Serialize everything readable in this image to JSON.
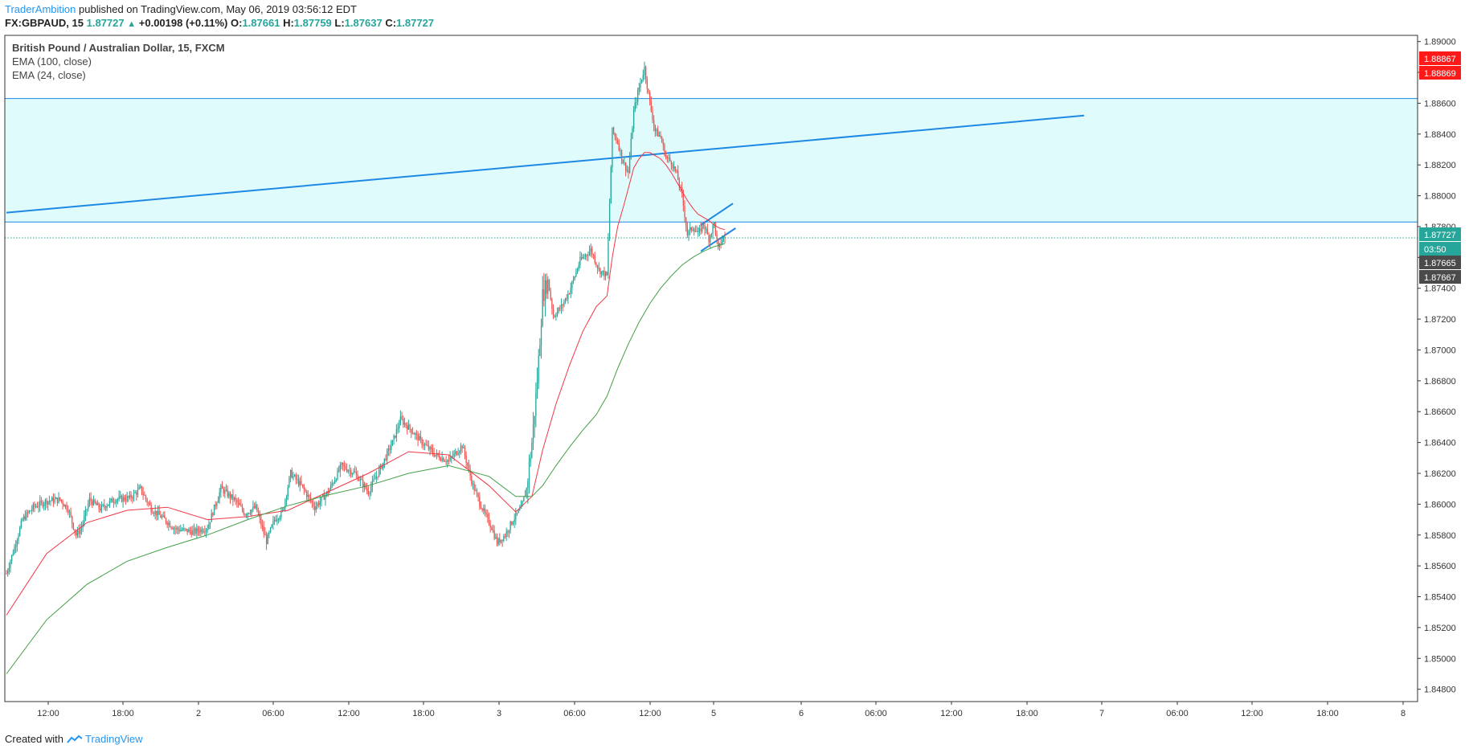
{
  "header": {
    "author": "TraderAmbition",
    "published_text": "published on TradingView.com, May 06, 2019 03:56:12 EDT",
    "symbol": "FX:GBPAUD, 15",
    "last": "1.87727",
    "change": "+0.00198 (+0.11%)",
    "o_label": "O:",
    "o_value": "1.87661",
    "h_label": "H:",
    "h_value": "1.87759",
    "l_label": "L:",
    "l_value": "1.87637",
    "c_label": "C:",
    "c_value": "1.87727"
  },
  "legend": {
    "title": "British Pound / Australian Dollar, 15, FXCM",
    "ema100": "EMA (100, close)",
    "ema24": "EMA (24, close)"
  },
  "price_tags": {
    "red_top": "1.88867",
    "red_bottom": "1.88869",
    "last": "1.87727",
    "countdown": "03:50",
    "dark_top": "1.87665",
    "dark_bottom": "1.87667"
  },
  "footer": {
    "created_with": "Created with",
    "brand": "TradingView"
  },
  "colors": {
    "up": "#26a69a",
    "down": "#ef5350",
    "ema24": "#f23645",
    "ema100": "#43a047",
    "zone": "#e0fbfb",
    "trendline": "#1e88e5",
    "accent": "#2196f3"
  },
  "chart_data": {
    "type": "candlestick",
    "title": "British Pound / Australian Dollar, 15, FXCM",
    "ylim": [
      1.8472,
      1.8904
    ],
    "y_ticks": [
      1.848,
      1.85,
      1.852,
      1.854,
      1.856,
      1.858,
      1.86,
      1.862,
      1.864,
      1.866,
      1.868,
      1.87,
      1.872,
      1.874,
      1.876,
      1.878,
      1.88,
      1.882,
      1.884,
      1.886,
      1.888,
      1.89
    ],
    "x_ticks": [
      "12:00",
      "18:00",
      "2",
      "06:00",
      "12:00",
      "18:00",
      "3",
      "06:00",
      "12:00",
      "5",
      "6",
      "06:00",
      "12:00",
      "18:00",
      "7",
      "06:00",
      "12:00",
      "18:00",
      "8"
    ],
    "zone": {
      "top": 1.8863,
      "bottom": 1.8783
    },
    "last_price": 1.87727,
    "series_path": [
      [
        0,
        1.8555
      ],
      [
        6,
        1.8572
      ],
      [
        12,
        1.859
      ],
      [
        20,
        1.8598
      ],
      [
        30,
        1.8602
      ],
      [
        40,
        1.8603
      ],
      [
        46,
        1.8597
      ],
      [
        52,
        1.858
      ],
      [
        56,
        1.8585
      ],
      [
        62,
        1.8603
      ],
      [
        70,
        1.8597
      ],
      [
        80,
        1.8603
      ],
      [
        92,
        1.8604
      ],
      [
        100,
        1.861
      ],
      [
        108,
        1.8597
      ],
      [
        118,
        1.859
      ],
      [
        126,
        1.8584
      ],
      [
        140,
        1.8582
      ],
      [
        150,
        1.8585
      ],
      [
        160,
        1.861
      ],
      [
        170,
        1.8603
      ],
      [
        178,
        1.8594
      ],
      [
        186,
        1.8598
      ],
      [
        194,
        1.8576
      ],
      [
        200,
        1.859
      ],
      [
        206,
        1.8595
      ],
      [
        212,
        1.862
      ],
      [
        220,
        1.8612
      ],
      [
        230,
        1.8598
      ],
      [
        240,
        1.8608
      ],
      [
        250,
        1.8625
      ],
      [
        260,
        1.862
      ],
      [
        270,
        1.8608
      ],
      [
        280,
        1.8625
      ],
      [
        288,
        1.864
      ],
      [
        294,
        1.8655
      ],
      [
        302,
        1.8648
      ],
      [
        310,
        1.864
      ],
      [
        320,
        1.8632
      ],
      [
        330,
        1.8628
      ],
      [
        340,
        1.8638
      ],
      [
        348,
        1.8612
      ],
      [
        356,
        1.8595
      ],
      [
        362,
        1.8585
      ],
      [
        366,
        1.8575
      ],
      [
        372,
        1.858
      ],
      [
        378,
        1.859
      ],
      [
        384,
        1.8597
      ],
      [
        388,
        1.861
      ],
      [
        392,
        1.864
      ],
      [
        396,
        1.868
      ],
      [
        400,
        1.8735
      ],
      [
        404,
        1.8745
      ],
      [
        408,
        1.8722
      ],
      [
        414,
        1.8728
      ],
      [
        420,
        1.8738
      ],
      [
        428,
        1.8758
      ],
      [
        436,
        1.8765
      ],
      [
        442,
        1.8752
      ],
      [
        448,
        1.8748
      ],
      [
        452,
        1.8842
      ],
      [
        456,
        1.8835
      ],
      [
        460,
        1.8822
      ],
      [
        464,
        1.8815
      ],
      [
        468,
        1.8855
      ],
      [
        472,
        1.887
      ],
      [
        476,
        1.8883
      ],
      [
        480,
        1.886
      ],
      [
        484,
        1.8842
      ],
      [
        488,
        1.8838
      ],
      [
        492,
        1.8825
      ],
      [
        496,
        1.8822
      ],
      [
        500,
        1.8814
      ],
      [
        504,
        1.88
      ],
      [
        508,
        1.8775
      ],
      [
        512,
        1.878
      ],
      [
        516,
        1.8775
      ],
      [
        520,
        1.8782
      ],
      [
        524,
        1.8772
      ],
      [
        528,
        1.8782
      ],
      [
        531,
        1.8765
      ],
      [
        534,
        1.8772
      ],
      [
        536,
        1.8773
      ]
    ],
    "series": [
      {
        "name": "EMA (24, close)",
        "x": [
          0,
          30,
          60,
          90,
          120,
          150,
          180,
          210,
          240,
          270,
          300,
          330,
          360,
          380,
          392,
          400,
          410,
          420,
          430,
          440,
          448,
          452,
          456,
          460,
          464,
          468,
          472,
          476,
          480,
          484,
          488,
          492,
          496,
          500,
          504,
          508,
          512,
          516,
          520,
          524,
          528,
          532,
          536
        ],
        "values": [
          1.8528,
          1.8568,
          1.8588,
          1.8596,
          1.8598,
          1.859,
          1.8592,
          1.8596,
          1.8608,
          1.862,
          1.8634,
          1.8632,
          1.8612,
          1.8595,
          1.8605,
          1.8635,
          1.8665,
          1.869,
          1.8712,
          1.8728,
          1.8735,
          1.876,
          1.878,
          1.8792,
          1.8805,
          1.8818,
          1.8824,
          1.8828,
          1.8828,
          1.8826,
          1.8824,
          1.882,
          1.8815,
          1.8809,
          1.8803,
          1.8797,
          1.8792,
          1.8788,
          1.8786,
          1.8784,
          1.8781,
          1.8779,
          1.8778
        ]
      },
      {
        "name": "EMA (100, close)",
        "x": [
          0,
          30,
          60,
          90,
          120,
          150,
          180,
          210,
          240,
          270,
          300,
          330,
          360,
          380,
          392,
          400,
          410,
          420,
          430,
          440,
          448,
          456,
          464,
          472,
          480,
          488,
          496,
          504,
          512,
          520,
          528,
          536
        ],
        "values": [
          1.849,
          1.8525,
          1.8548,
          1.8563,
          1.8572,
          1.858,
          1.859,
          1.8599,
          1.8606,
          1.8612,
          1.862,
          1.8625,
          1.8618,
          1.8605,
          1.8605,
          1.8612,
          1.8625,
          1.8637,
          1.8648,
          1.8658,
          1.867,
          1.8688,
          1.8704,
          1.8718,
          1.873,
          1.874,
          1.8748,
          1.8755,
          1.876,
          1.8764,
          1.8767,
          1.8769
        ]
      }
    ],
    "trendline": {
      "x": [
        0,
        804
      ],
      "values": [
        1.8789,
        1.8852
      ]
    },
    "flag": {
      "upper_x": [
        518,
        542
      ],
      "upper_values": [
        1.8781,
        1.8795
      ],
      "lower_x": [
        518,
        544
      ],
      "lower_values": [
        1.8764,
        1.8779
      ]
    }
  }
}
